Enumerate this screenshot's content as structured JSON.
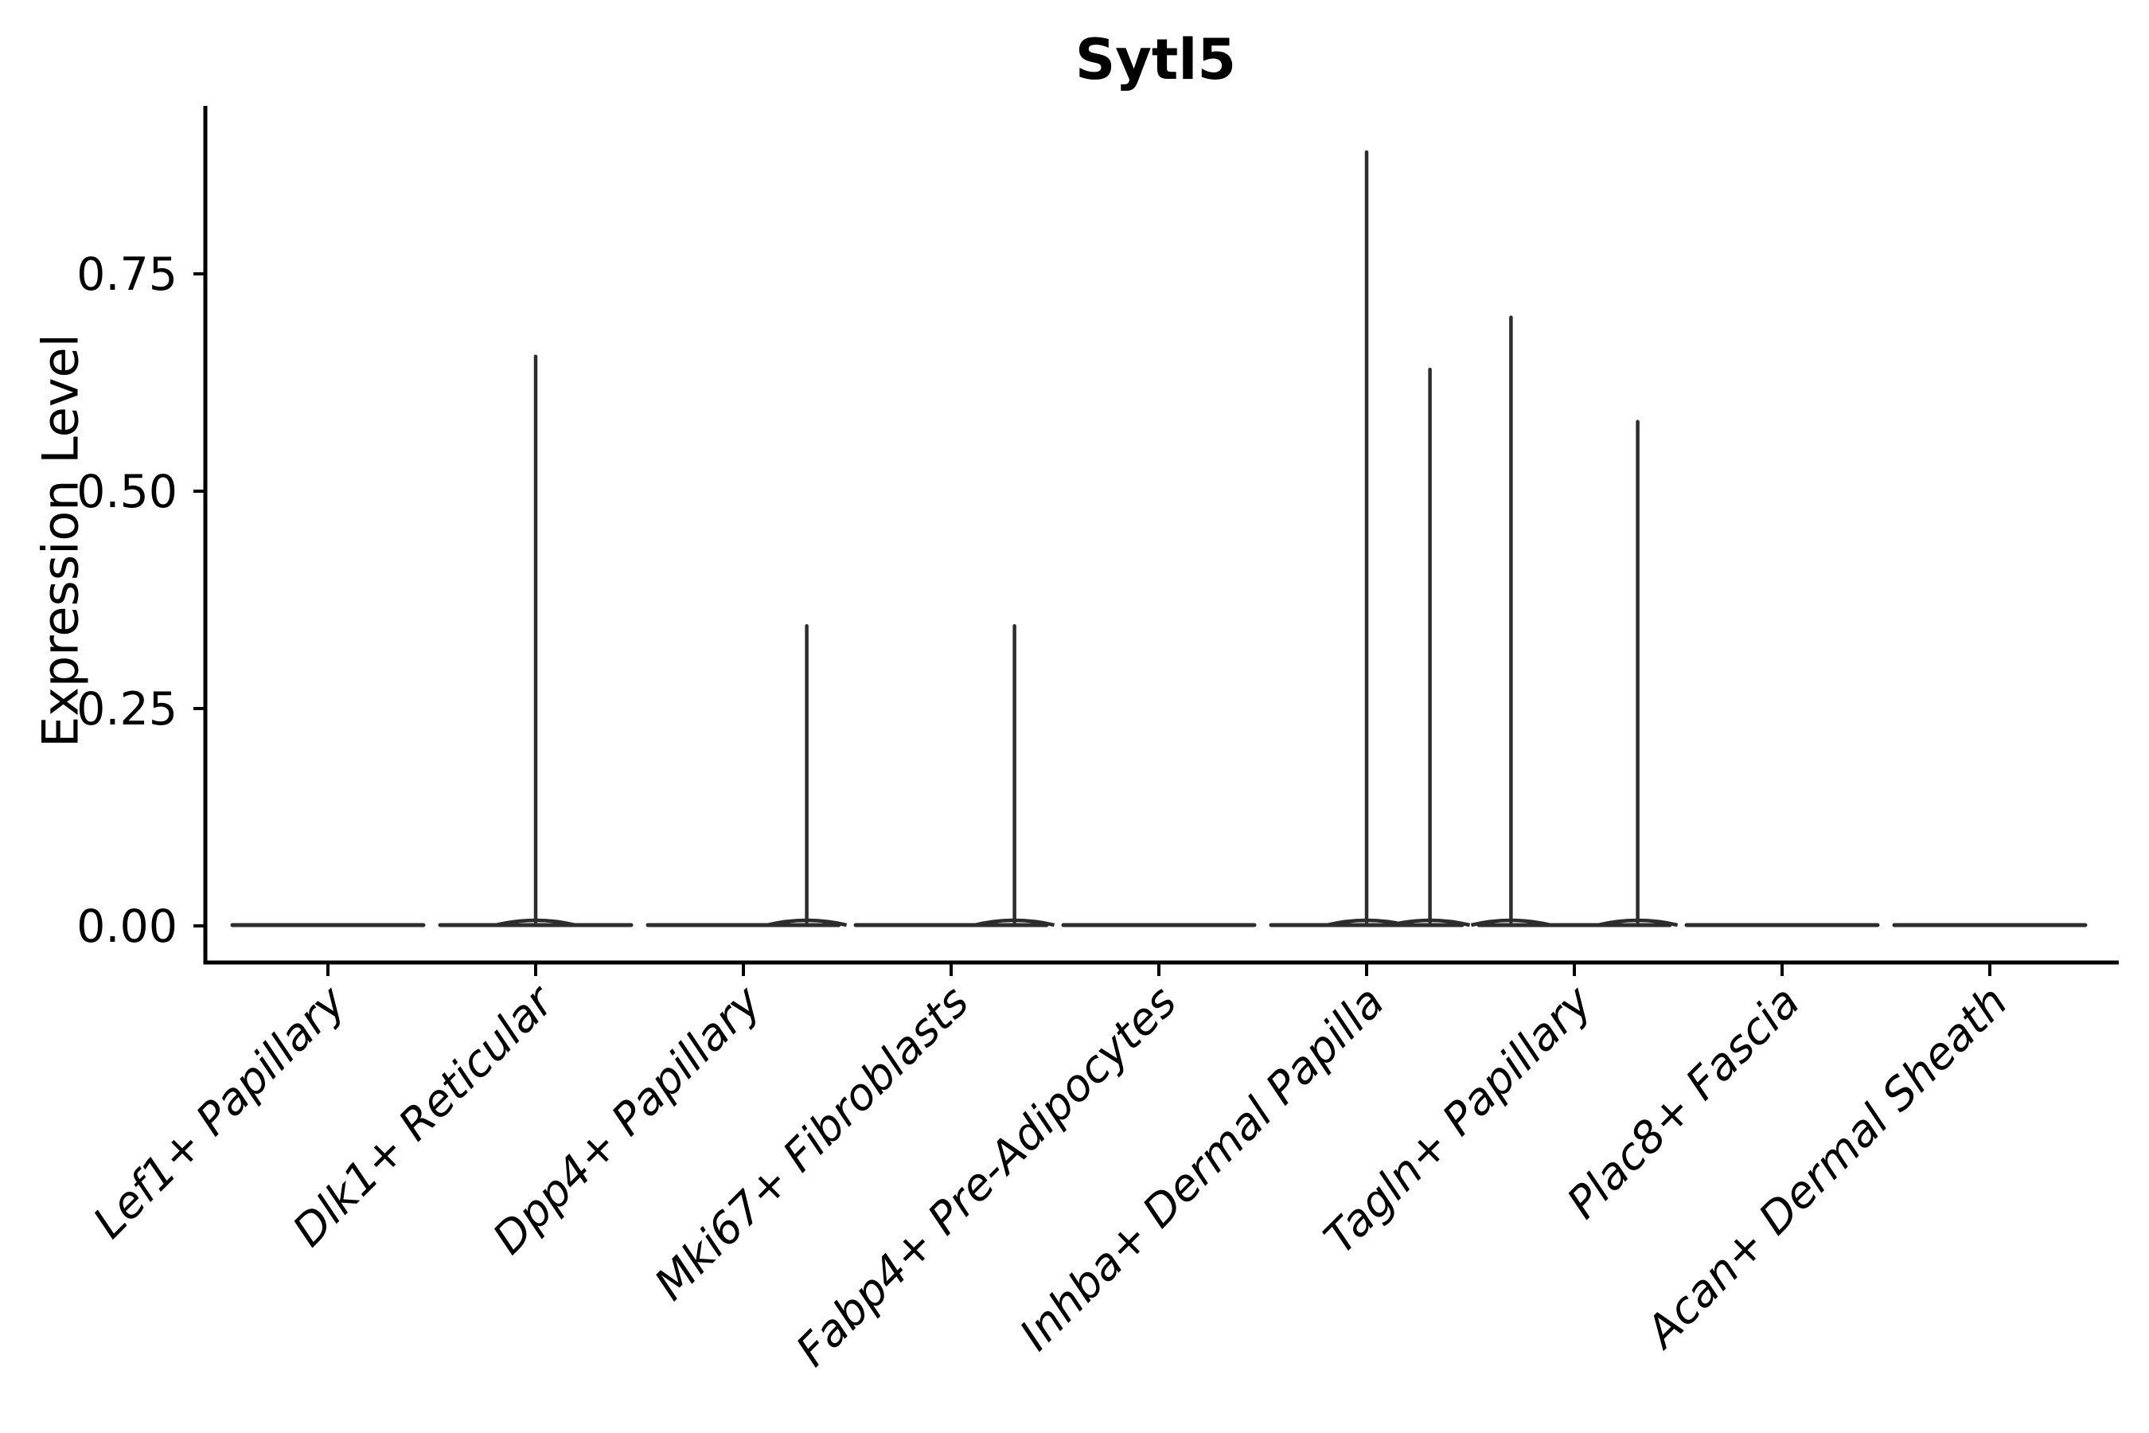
{
  "chart_data": {
    "type": "violin",
    "title": "Sytl5",
    "xlabel": "",
    "ylabel": "Expression Level",
    "legend": "none",
    "grid": false,
    "ylim": [
      0,
      0.94
    ],
    "ytick_values": [
      0,
      0.25,
      0.5,
      0.75
    ],
    "ytick_labels": [
      "0.00",
      "0.25",
      "0.50",
      "0.75"
    ],
    "categories": [
      "Lef1+ Papillary",
      "Dlk1+ Reticular",
      "Dpp4+ Papillary",
      "Mki67+ Fibroblasts",
      "Fabp4+ Pre-Adipocytes",
      "Inhba+ Dermal Papilla",
      "Tagln+ Papillary",
      "Plac8+ Fascia",
      "Acan+ Dermal Sheath"
    ],
    "violins": [
      {
        "category": "Lef1+ Papillary",
        "baseline_value": 0,
        "spikes": []
      },
      {
        "category": "Dlk1+ Reticular",
        "baseline_value": 0,
        "spikes": [
          {
            "offset": 0,
            "value": 0.655
          }
        ]
      },
      {
        "category": "Dpp4+ Papillary",
        "baseline_value": 0,
        "spikes": [
          {
            "offset": 0.305,
            "value": 0.345
          }
        ]
      },
      {
        "category": "Mki67+ Fibroblasts",
        "baseline_value": 0,
        "spikes": [
          {
            "offset": 0.305,
            "value": 0.345
          }
        ]
      },
      {
        "category": "Fabp4+ Pre-Adipocytes",
        "baseline_value": 0,
        "spikes": []
      },
      {
        "category": "Inhba+ Dermal Papilla",
        "baseline_value": 0,
        "spikes": [
          {
            "offset": 0,
            "value": 0.89
          },
          {
            "offset": 0.305,
            "value": 0.64
          }
        ]
      },
      {
        "category": "Tagln+ Papillary",
        "baseline_value": 0,
        "spikes": [
          {
            "offset": -0.305,
            "value": 0.7
          },
          {
            "offset": 0.305,
            "value": 0.58
          }
        ]
      },
      {
        "category": "Plac8+ Fascia",
        "baseline_value": 0,
        "spikes": []
      },
      {
        "category": "Acan+ Dermal Sheath",
        "baseline_value": 0,
        "spikes": []
      }
    ],
    "colors": {
      "violin_line": "#2d2d2d",
      "axis": "#000000",
      "text": "#000000",
      "background": "#ffffff"
    }
  }
}
